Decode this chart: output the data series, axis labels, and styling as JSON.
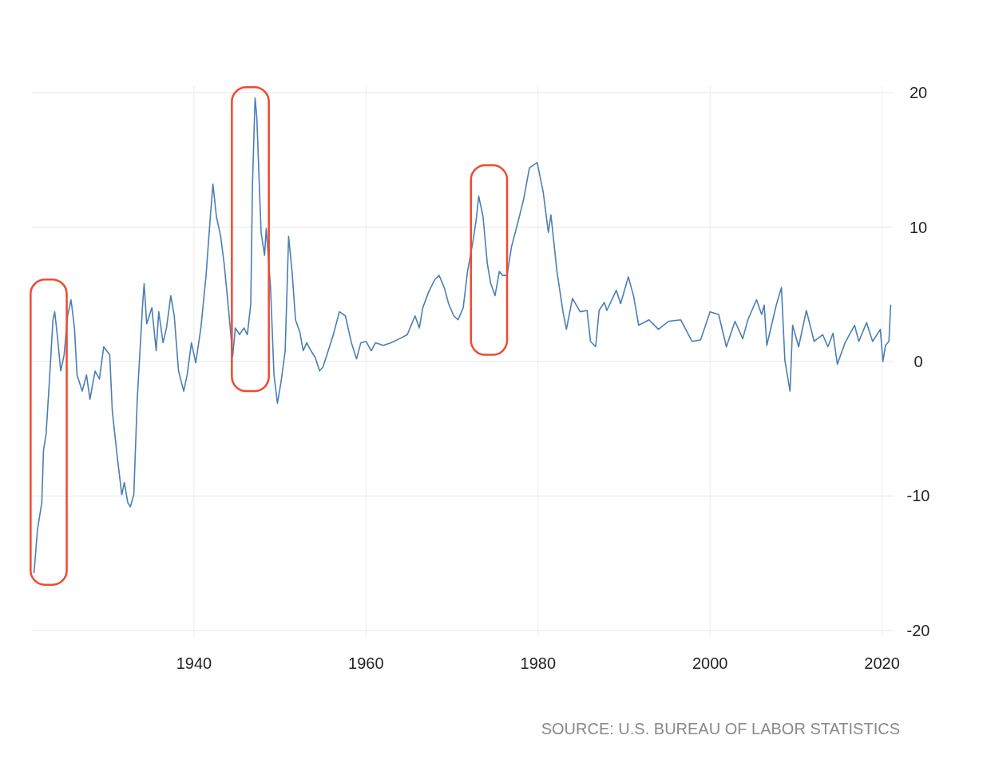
{
  "chart_data": {
    "type": "line",
    "x": [
      1921.4,
      1921.8,
      1922.3,
      1922.5,
      1922.8,
      1923.2,
      1923.6,
      1923.8,
      1924.1,
      1924.5,
      1924.9,
      1925.3,
      1925.7,
      1926.1,
      1926.4,
      1927.0,
      1927.5,
      1927.9,
      1928.5,
      1929.0,
      1929.5,
      1930.2,
      1930.5,
      1931.1,
      1931.6,
      1931.9,
      1932.3,
      1932.6,
      1933.0,
      1933.4,
      1934.0,
      1934.2,
      1934.5,
      1935.1,
      1935.6,
      1935.9,
      1936.4,
      1936.8,
      1937.3,
      1937.7,
      1938.2,
      1938.8,
      1939.2,
      1939.7,
      1940.2,
      1940.8,
      1941.4,
      1941.9,
      1942.2,
      1942.6,
      1943.1,
      1943.5,
      1944.0,
      1944.5,
      1944.8,
      1945.3,
      1945.8,
      1946.2,
      1946.6,
      1946.8,
      1947.1,
      1947.3,
      1947.8,
      1948.2,
      1948.4,
      1948.9,
      1949.3,
      1949.7,
      1950.1,
      1950.6,
      1951.0,
      1951.4,
      1951.8,
      1952.3,
      1952.7,
      1953.1,
      1953.6,
      1954.1,
      1954.6,
      1955.0,
      1955.5,
      1956.2,
      1956.9,
      1957.6,
      1958.3,
      1958.9,
      1959.4,
      1960.0,
      1960.6,
      1961.1,
      1962.0,
      1962.9,
      1963.9,
      1964.8,
      1965.7,
      1966.2,
      1966.6,
      1967.3,
      1968.0,
      1968.5,
      1969.1,
      1969.6,
      1970.2,
      1970.7,
      1971.3,
      1971.8,
      1972.4,
      1972.8,
      1973.1,
      1973.6,
      1974.1,
      1974.5,
      1975.0,
      1975.5,
      1975.9,
      1976.4,
      1976.9,
      1977.6,
      1978.3,
      1979.0,
      1979.9,
      1980.6,
      1981.2,
      1981.5,
      1982.2,
      1982.9,
      1983.3,
      1984.0,
      1984.9,
      1985.7,
      1986.1,
      1986.7,
      1987.1,
      1987.7,
      1988.0,
      1989.1,
      1989.6,
      1990.5,
      1991.1,
      1991.7,
      1992.9,
      1994.0,
      1995.2,
      1996.6,
      1997.9,
      1998.9,
      2000.0,
      2001.0,
      2001.9,
      2002.9,
      2003.8,
      2004.4,
      2005.4,
      2006.0,
      2006.3,
      2006.6,
      2007.7,
      2008.3,
      2008.7,
      2009.3,
      2009.6,
      2010.3,
      2011.2,
      2012.1,
      2013.1,
      2013.7,
      2014.3,
      2014.8,
      2015.7,
      2016.8,
      2017.3,
      2018.2,
      2018.9,
      2019.8,
      2020.1,
      2020.4,
      2020.8,
      2021.0
    ],
    "series": [
      {
        "color": "#4a7fb5",
        "values": [
          -15.7,
          -12.5,
          -10.5,
          -6.6,
          -5.4,
          -1.3,
          3.1,
          3.7,
          2.0,
          -0.7,
          0.5,
          3.4,
          4.6,
          2.5,
          -1.0,
          -2.2,
          -1.0,
          -2.8,
          -0.7,
          -1.3,
          1.1,
          0.5,
          -3.7,
          -7.2,
          -9.9,
          -9.0,
          -10.5,
          -10.8,
          -9.9,
          -2.8,
          4.0,
          5.8,
          2.8,
          4.0,
          0.8,
          3.7,
          1.4,
          2.5,
          4.9,
          3.4,
          -0.7,
          -2.2,
          -1.0,
          1.4,
          -0.1,
          2.5,
          6.4,
          10.8,
          13.2,
          10.8,
          9.3,
          7.3,
          4.0,
          0.4,
          2.5,
          2.0,
          2.5,
          2.0,
          4.3,
          13.2,
          19.6,
          18.2,
          9.6,
          7.9,
          9.9,
          5.5,
          -1.0,
          -3.1,
          -1.6,
          0.8,
          9.3,
          6.7,
          3.1,
          2.2,
          0.8,
          1.4,
          0.8,
          0.3,
          -0.7,
          -0.4,
          0.6,
          2.0,
          3.7,
          3.4,
          1.4,
          0.2,
          1.4,
          1.5,
          0.8,
          1.4,
          1.2,
          1.4,
          1.7,
          2.0,
          3.4,
          2.5,
          4.0,
          5.2,
          6.1,
          6.4,
          5.5,
          4.3,
          3.4,
          3.1,
          4.0,
          6.7,
          8.8,
          10.5,
          12.3,
          10.8,
          7.3,
          5.8,
          4.9,
          6.7,
          6.4,
          6.4,
          8.5,
          10.2,
          12.0,
          14.4,
          14.8,
          12.6,
          9.6,
          10.9,
          6.7,
          3.7,
          2.4,
          4.7,
          3.7,
          3.8,
          1.5,
          1.1,
          3.8,
          4.4,
          3.8,
          5.3,
          4.3,
          6.3,
          4.9,
          2.7,
          3.1,
          2.4,
          3.0,
          3.1,
          1.5,
          1.6,
          3.7,
          3.5,
          1.1,
          3.0,
          1.7,
          3.1,
          4.6,
          3.5,
          4.2,
          1.2,
          4.2,
          5.5,
          0.1,
          -2.2,
          2.7,
          1.1,
          3.8,
          1.5,
          2.0,
          1.1,
          2.1,
          -0.2,
          1.4,
          2.7,
          1.5,
          2.9,
          1.5,
          2.4,
          0.0,
          1.2,
          1.5,
          4.2
        ]
      }
    ],
    "xlim": [
      1921.1,
      2021.3
    ],
    "ylim": [
      -20.5,
      20.5
    ],
    "xticks": [
      1940,
      1960,
      1980,
      2000,
      2020
    ],
    "yticks": [
      -20,
      -10,
      0,
      10,
      20
    ],
    "grid": true,
    "line_style": "solid",
    "marker": "none",
    "annotations": [
      "SOURCE: U.S. BUREAU OF LABOR STATISTICS"
    ]
  }
}
